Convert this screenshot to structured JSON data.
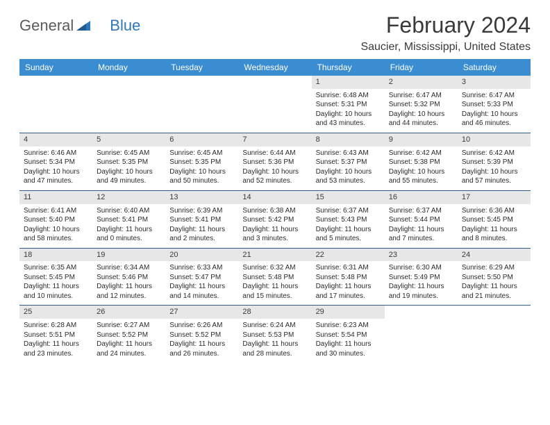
{
  "logo": {
    "text_gray": "General",
    "text_blue": "Blue"
  },
  "title": "February 2024",
  "location": "Saucier, Mississippi, United States",
  "colors": {
    "header_bar": "#3a8dd0",
    "header_text": "#ffffff",
    "daynum_bg": "#e7e7e7",
    "week_divider": "#2f5a8a",
    "body_text": "#2a2a2a",
    "title_text": "#3a3a3a",
    "logo_gray": "#5a5a5a",
    "logo_blue": "#2f77bb"
  },
  "day_headers": [
    "Sunday",
    "Monday",
    "Tuesday",
    "Wednesday",
    "Thursday",
    "Friday",
    "Saturday"
  ],
  "weeks": [
    [
      null,
      null,
      null,
      null,
      {
        "n": "1",
        "sr": "6:48 AM",
        "ss": "5:31 PM",
        "dl": "10 hours and 43 minutes."
      },
      {
        "n": "2",
        "sr": "6:47 AM",
        "ss": "5:32 PM",
        "dl": "10 hours and 44 minutes."
      },
      {
        "n": "3",
        "sr": "6:47 AM",
        "ss": "5:33 PM",
        "dl": "10 hours and 46 minutes."
      }
    ],
    [
      {
        "n": "4",
        "sr": "6:46 AM",
        "ss": "5:34 PM",
        "dl": "10 hours and 47 minutes."
      },
      {
        "n": "5",
        "sr": "6:45 AM",
        "ss": "5:35 PM",
        "dl": "10 hours and 49 minutes."
      },
      {
        "n": "6",
        "sr": "6:45 AM",
        "ss": "5:35 PM",
        "dl": "10 hours and 50 minutes."
      },
      {
        "n": "7",
        "sr": "6:44 AM",
        "ss": "5:36 PM",
        "dl": "10 hours and 52 minutes."
      },
      {
        "n": "8",
        "sr": "6:43 AM",
        "ss": "5:37 PM",
        "dl": "10 hours and 53 minutes."
      },
      {
        "n": "9",
        "sr": "6:42 AM",
        "ss": "5:38 PM",
        "dl": "10 hours and 55 minutes."
      },
      {
        "n": "10",
        "sr": "6:42 AM",
        "ss": "5:39 PM",
        "dl": "10 hours and 57 minutes."
      }
    ],
    [
      {
        "n": "11",
        "sr": "6:41 AM",
        "ss": "5:40 PM",
        "dl": "10 hours and 58 minutes."
      },
      {
        "n": "12",
        "sr": "6:40 AM",
        "ss": "5:41 PM",
        "dl": "11 hours and 0 minutes."
      },
      {
        "n": "13",
        "sr": "6:39 AM",
        "ss": "5:41 PM",
        "dl": "11 hours and 2 minutes."
      },
      {
        "n": "14",
        "sr": "6:38 AM",
        "ss": "5:42 PM",
        "dl": "11 hours and 3 minutes."
      },
      {
        "n": "15",
        "sr": "6:37 AM",
        "ss": "5:43 PM",
        "dl": "11 hours and 5 minutes."
      },
      {
        "n": "16",
        "sr": "6:37 AM",
        "ss": "5:44 PM",
        "dl": "11 hours and 7 minutes."
      },
      {
        "n": "17",
        "sr": "6:36 AM",
        "ss": "5:45 PM",
        "dl": "11 hours and 8 minutes."
      }
    ],
    [
      {
        "n": "18",
        "sr": "6:35 AM",
        "ss": "5:45 PM",
        "dl": "11 hours and 10 minutes."
      },
      {
        "n": "19",
        "sr": "6:34 AM",
        "ss": "5:46 PM",
        "dl": "11 hours and 12 minutes."
      },
      {
        "n": "20",
        "sr": "6:33 AM",
        "ss": "5:47 PM",
        "dl": "11 hours and 14 minutes."
      },
      {
        "n": "21",
        "sr": "6:32 AM",
        "ss": "5:48 PM",
        "dl": "11 hours and 15 minutes."
      },
      {
        "n": "22",
        "sr": "6:31 AM",
        "ss": "5:48 PM",
        "dl": "11 hours and 17 minutes."
      },
      {
        "n": "23",
        "sr": "6:30 AM",
        "ss": "5:49 PM",
        "dl": "11 hours and 19 minutes."
      },
      {
        "n": "24",
        "sr": "6:29 AM",
        "ss": "5:50 PM",
        "dl": "11 hours and 21 minutes."
      }
    ],
    [
      {
        "n": "25",
        "sr": "6:28 AM",
        "ss": "5:51 PM",
        "dl": "11 hours and 23 minutes."
      },
      {
        "n": "26",
        "sr": "6:27 AM",
        "ss": "5:52 PM",
        "dl": "11 hours and 24 minutes."
      },
      {
        "n": "27",
        "sr": "6:26 AM",
        "ss": "5:52 PM",
        "dl": "11 hours and 26 minutes."
      },
      {
        "n": "28",
        "sr": "6:24 AM",
        "ss": "5:53 PM",
        "dl": "11 hours and 28 minutes."
      },
      {
        "n": "29",
        "sr": "6:23 AM",
        "ss": "5:54 PM",
        "dl": "11 hours and 30 minutes."
      },
      null,
      null
    ]
  ],
  "labels": {
    "sunrise": "Sunrise:",
    "sunset": "Sunset:",
    "daylight": "Daylight:"
  }
}
